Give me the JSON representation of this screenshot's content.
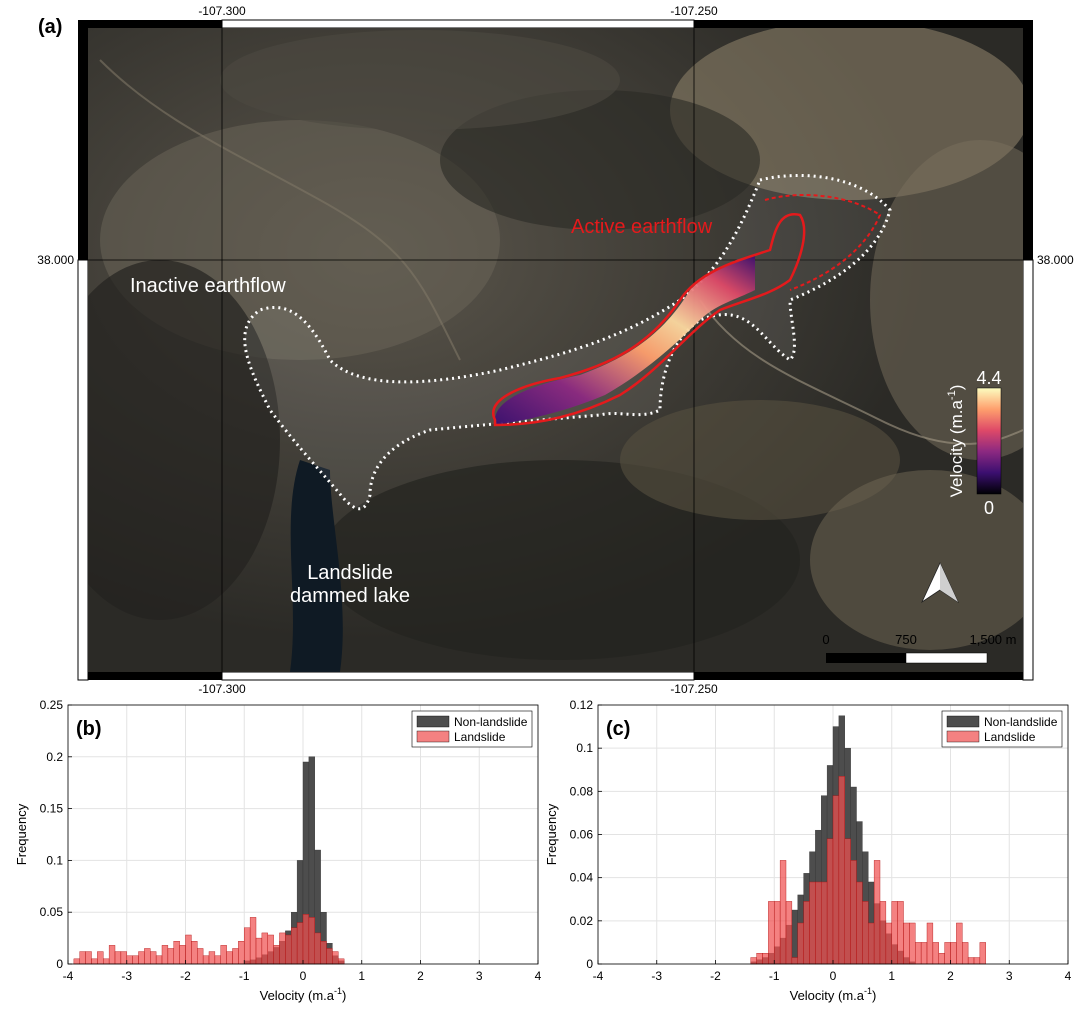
{
  "panel_a": {
    "label": "(a)",
    "lon_ticks": [
      "-107.300",
      "-107.250"
    ],
    "lat_tick": "38.000",
    "annotations": {
      "active": "Active earthflow",
      "inactive": "Inactive earthflow",
      "lake_line1": "Landslide",
      "lake_line2": "dammed lake"
    },
    "colorbar": {
      "max": "4.4",
      "min": "0",
      "label": "Velocity (m.a",
      "label_sup": "-1",
      "label_end": ")"
    },
    "scale": {
      "ticks": [
        "0",
        "750",
        "1,500 m"
      ]
    },
    "colors": {
      "active_outline": "#e41a1c",
      "inactive_outline": "#ffffff"
    }
  },
  "panel_b": {
    "label": "(b)"
  },
  "panel_c": {
    "label": "(c)"
  },
  "chart_data": [
    {
      "type": "bar",
      "panel": "(b)",
      "xlabel": "Velocity (m.a",
      "xlabel_sup": "-1",
      "xlabel_end": ")",
      "ylabel": "Frequency",
      "xlim": [
        -4,
        4
      ],
      "ylim": [
        0,
        0.25
      ],
      "xticks": [
        "-4",
        "-3",
        "-2",
        "-1",
        "0",
        "1",
        "2",
        "3",
        "4"
      ],
      "yticks": [
        "0",
        "0.05",
        "0.1",
        "0.15",
        "0.2",
        "0.25"
      ],
      "grid": true,
      "legend_position": "top-right",
      "bin_width": 0.1,
      "series": [
        {
          "name": "Non-landslide",
          "color": "#4d4d4d",
          "bins": [
            [
              -1.0,
              0.003
            ],
            [
              -0.9,
              0.004
            ],
            [
              -0.8,
              0.006
            ],
            [
              -0.7,
              0.009
            ],
            [
              -0.6,
              0.012
            ],
            [
              -0.5,
              0.016
            ],
            [
              -0.4,
              0.022
            ],
            [
              -0.3,
              0.032
            ],
            [
              -0.2,
              0.05
            ],
            [
              -0.1,
              0.1
            ],
            [
              0.0,
              0.195
            ],
            [
              0.1,
              0.2
            ],
            [
              0.2,
              0.11
            ],
            [
              0.3,
              0.05
            ],
            [
              0.4,
              0.02
            ],
            [
              0.5,
              0.008
            ],
            [
              0.6,
              0.003
            ]
          ]
        },
        {
          "name": "Landslide",
          "color": "#f05050",
          "bins": [
            [
              -3.9,
              0.005
            ],
            [
              -3.8,
              0.012
            ],
            [
              -3.7,
              0.012
            ],
            [
              -3.6,
              0.005
            ],
            [
              -3.5,
              0.012
            ],
            [
              -3.4,
              0.005
            ],
            [
              -3.3,
              0.018
            ],
            [
              -3.2,
              0.012
            ],
            [
              -3.1,
              0.012
            ],
            [
              -3.0,
              0.008
            ],
            [
              -2.9,
              0.008
            ],
            [
              -2.8,
              0.012
            ],
            [
              -2.7,
              0.015
            ],
            [
              -2.6,
              0.012
            ],
            [
              -2.5,
              0.008
            ],
            [
              -2.4,
              0.018
            ],
            [
              -2.3,
              0.015
            ],
            [
              -2.2,
              0.022
            ],
            [
              -2.1,
              0.018
            ],
            [
              -2.0,
              0.028
            ],
            [
              -1.9,
              0.022
            ],
            [
              -1.8,
              0.015
            ],
            [
              -1.7,
              0.008
            ],
            [
              -1.6,
              0.012
            ],
            [
              -1.5,
              0.008
            ],
            [
              -1.4,
              0.018
            ],
            [
              -1.3,
              0.012
            ],
            [
              -1.2,
              0.015
            ],
            [
              -1.1,
              0.022
            ],
            [
              -1.0,
              0.035
            ],
            [
              -0.9,
              0.045
            ],
            [
              -0.8,
              0.025
            ],
            [
              -0.7,
              0.03
            ],
            [
              -0.6,
              0.028
            ],
            [
              -0.5,
              0.018
            ],
            [
              -0.4,
              0.03
            ],
            [
              -0.3,
              0.028
            ],
            [
              -0.2,
              0.035
            ],
            [
              -0.1,
              0.04
            ],
            [
              0.0,
              0.048
            ],
            [
              0.1,
              0.045
            ],
            [
              0.2,
              0.03
            ],
            [
              0.3,
              0.022
            ],
            [
              0.4,
              0.015
            ],
            [
              0.5,
              0.012
            ],
            [
              0.6,
              0.005
            ]
          ]
        }
      ]
    },
    {
      "type": "bar",
      "panel": "(c)",
      "xlabel": "Velocity (m.a",
      "xlabel_sup": "-1",
      "xlabel_end": ")",
      "ylabel": "Frequency",
      "xlim": [
        -4,
        4
      ],
      "ylim": [
        0,
        0.12
      ],
      "xticks": [
        "-4",
        "-3",
        "-2",
        "-1",
        "0",
        "1",
        "2",
        "3",
        "4"
      ],
      "yticks": [
        "0",
        "0.02",
        "0.04",
        "0.06",
        "0.08",
        "0.1",
        "0.12"
      ],
      "grid": true,
      "legend_position": "top-right",
      "bin_width": 0.1,
      "series": [
        {
          "name": "Non-landslide",
          "color": "#4d4d4d",
          "bins": [
            [
              -1.4,
              0.001
            ],
            [
              -1.3,
              0.002
            ],
            [
              -1.2,
              0.003
            ],
            [
              -1.1,
              0.005
            ],
            [
              -1.0,
              0.008
            ],
            [
              -0.9,
              0.012
            ],
            [
              -0.8,
              0.018
            ],
            [
              -0.7,
              0.025
            ],
            [
              -0.6,
              0.032
            ],
            [
              -0.5,
              0.042
            ],
            [
              -0.4,
              0.052
            ],
            [
              -0.3,
              0.062
            ],
            [
              -0.2,
              0.078
            ],
            [
              -0.1,
              0.092
            ],
            [
              0.0,
              0.11
            ],
            [
              0.1,
              0.115
            ],
            [
              0.2,
              0.1
            ],
            [
              0.3,
              0.082
            ],
            [
              0.4,
              0.066
            ],
            [
              0.5,
              0.052
            ],
            [
              0.6,
              0.038
            ],
            [
              0.7,
              0.028
            ],
            [
              0.8,
              0.02
            ],
            [
              0.9,
              0.014
            ],
            [
              1.0,
              0.009
            ],
            [
              1.1,
              0.006
            ],
            [
              1.2,
              0.003
            ],
            [
              1.3,
              0.001
            ]
          ]
        },
        {
          "name": "Landslide",
          "color": "#f05050",
          "bins": [
            [
              -1.4,
              0.003
            ],
            [
              -1.3,
              0.005
            ],
            [
              -1.2,
              0.005
            ],
            [
              -1.1,
              0.029
            ],
            [
              -1.0,
              0.029
            ],
            [
              -0.9,
              0.048
            ],
            [
              -0.8,
              0.029
            ],
            [
              -0.7,
              0.003
            ],
            [
              -0.6,
              0.019
            ],
            [
              -0.5,
              0.029
            ],
            [
              -0.4,
              0.038
            ],
            [
              -0.3,
              0.038
            ],
            [
              -0.2,
              0.038
            ],
            [
              -0.1,
              0.058
            ],
            [
              0.0,
              0.078
            ],
            [
              0.1,
              0.087
            ],
            [
              0.2,
              0.058
            ],
            [
              0.3,
              0.048
            ],
            [
              0.4,
              0.038
            ],
            [
              0.5,
              0.029
            ],
            [
              0.6,
              0.019
            ],
            [
              0.7,
              0.048
            ],
            [
              0.8,
              0.029
            ],
            [
              0.9,
              0.019
            ],
            [
              1.0,
              0.029
            ],
            [
              1.1,
              0.029
            ],
            [
              1.2,
              0.019
            ],
            [
              1.3,
              0.019
            ],
            [
              1.4,
              0.01
            ],
            [
              1.5,
              0.01
            ],
            [
              1.6,
              0.019
            ],
            [
              1.7,
              0.01
            ],
            [
              1.8,
              0.005
            ],
            [
              1.9,
              0.01
            ],
            [
              2.0,
              0.01
            ],
            [
              2.1,
              0.019
            ],
            [
              2.2,
              0.01
            ],
            [
              2.3,
              0.003
            ],
            [
              2.4,
              0.003
            ],
            [
              2.5,
              0.01
            ]
          ]
        }
      ]
    }
  ]
}
